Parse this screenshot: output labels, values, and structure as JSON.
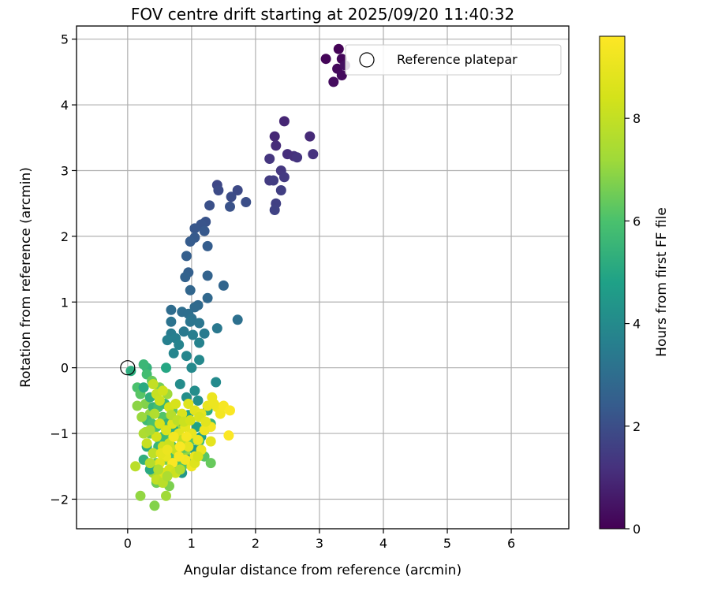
{
  "chart_data": {
    "type": "scatter",
    "title": "FOV centre drift starting at 2025/09/20 11:40:32",
    "xlabel": "Angular distance from reference (arcmin)",
    "ylabel": "Rotation from reference (arcmin)",
    "xlim": [
      -0.8,
      6.9
    ],
    "ylim": [
      -2.45,
      5.2
    ],
    "xticks": [
      0,
      1,
      2,
      3,
      4,
      5,
      6
    ],
    "yticks": [
      -2,
      -1,
      0,
      1,
      2,
      3,
      4,
      5
    ],
    "grid": true,
    "legend": {
      "position": "top-right",
      "entries": [
        "Reference platepar"
      ]
    },
    "reference_point": {
      "x": 0,
      "y": 0
    },
    "colorbar": {
      "label": "Hours from first FF file",
      "min": 0,
      "max": 9.6,
      "ticks": [
        0,
        2,
        4,
        6,
        8
      ],
      "colormap": "viridis"
    },
    "points": [
      [
        3.3,
        4.85,
        0.05
      ],
      [
        3.1,
        4.7,
        0.1
      ],
      [
        3.35,
        4.7,
        0.15
      ],
      [
        3.28,
        4.55,
        0.2
      ],
      [
        3.35,
        4.45,
        0.25
      ],
      [
        3.22,
        4.35,
        0.3
      ],
      [
        3.4,
        4.6,
        0.35
      ],
      [
        2.45,
        3.75,
        0.9
      ],
      [
        2.3,
        3.52,
        0.95
      ],
      [
        2.85,
        3.52,
        1.0
      ],
      [
        2.32,
        3.38,
        1.05
      ],
      [
        2.5,
        3.25,
        1.1
      ],
      [
        2.6,
        3.22,
        1.15
      ],
      [
        2.9,
        3.25,
        1.2
      ],
      [
        2.65,
        3.2,
        1.25
      ],
      [
        2.22,
        3.18,
        1.3
      ],
      [
        2.4,
        3.0,
        1.35
      ],
      [
        2.45,
        2.9,
        1.4
      ],
      [
        2.22,
        2.85,
        1.45
      ],
      [
        2.28,
        2.85,
        1.5
      ],
      [
        2.4,
        2.7,
        1.55
      ],
      [
        2.32,
        2.5,
        1.6
      ],
      [
        2.3,
        2.4,
        1.65
      ],
      [
        1.4,
        2.78,
        1.8
      ],
      [
        1.72,
        2.7,
        1.85
      ],
      [
        1.42,
        2.7,
        1.9
      ],
      [
        1.62,
        2.6,
        1.95
      ],
      [
        1.85,
        2.52,
        2.0
      ],
      [
        1.28,
        2.47,
        2.05
      ],
      [
        1.6,
        2.45,
        2.1
      ],
      [
        1.22,
        2.22,
        2.15
      ],
      [
        1.15,
        2.18,
        2.2
      ],
      [
        1.05,
        2.12,
        2.25
      ],
      [
        1.2,
        2.08,
        2.3
      ],
      [
        1.05,
        1.98,
        2.35
      ],
      [
        0.98,
        1.92,
        2.4
      ],
      [
        1.25,
        1.85,
        2.45
      ],
      [
        0.92,
        1.7,
        2.5
      ],
      [
        0.95,
        1.45,
        2.55
      ],
      [
        0.9,
        1.38,
        2.6
      ],
      [
        1.25,
        1.4,
        2.65
      ],
      [
        1.5,
        1.25,
        2.7
      ],
      [
        0.98,
        1.18,
        2.75
      ],
      [
        1.25,
        1.06,
        2.8
      ],
      [
        1.1,
        0.95,
        2.85
      ],
      [
        1.05,
        0.92,
        2.9
      ],
      [
        0.68,
        0.88,
        2.95
      ],
      [
        0.85,
        0.85,
        3.0
      ],
      [
        0.95,
        0.82,
        3.05
      ],
      [
        1.72,
        0.73,
        3.1
      ],
      [
        1.0,
        0.75,
        3.15
      ],
      [
        0.68,
        0.7,
        3.2
      ],
      [
        0.98,
        0.7,
        3.25
      ],
      [
        1.12,
        0.68,
        3.3
      ],
      [
        1.4,
        0.6,
        3.35
      ],
      [
        0.88,
        0.55,
        3.4
      ],
      [
        1.2,
        0.52,
        3.45
      ],
      [
        0.68,
        0.52,
        3.5
      ],
      [
        1.02,
        0.5,
        3.55
      ],
      [
        0.75,
        0.45,
        3.6
      ],
      [
        0.62,
        0.42,
        3.65
      ],
      [
        1.12,
        0.38,
        3.7
      ],
      [
        0.8,
        0.35,
        3.75
      ],
      [
        0.72,
        0.22,
        3.8
      ],
      [
        0.92,
        0.18,
        3.85
      ],
      [
        1.12,
        0.12,
        3.9
      ],
      [
        1.0,
        0.0,
        3.95
      ],
      [
        1.38,
        -0.22,
        4.0
      ],
      [
        0.82,
        -0.25,
        4.05
      ],
      [
        1.05,
        -0.35,
        4.1
      ],
      [
        0.92,
        -0.45,
        4.15
      ],
      [
        1.1,
        -0.5,
        4.2
      ],
      [
        0.6,
        0.0,
        5.0
      ],
      [
        0.05,
        -0.05,
        5.2
      ],
      [
        0.3,
        0.0,
        5.4
      ],
      [
        0.25,
        0.05,
        5.6
      ],
      [
        0.3,
        -0.1,
        5.8
      ],
      [
        0.15,
        -0.3,
        6.0
      ],
      [
        0.2,
        -0.4,
        6.2
      ],
      [
        0.38,
        -0.2,
        6.4
      ],
      [
        0.5,
        -0.3,
        6.6
      ],
      [
        0.28,
        -0.55,
        6.8
      ],
      [
        0.35,
        -0.7,
        7.0
      ],
      [
        0.62,
        -0.4,
        7.2
      ],
      [
        0.25,
        -0.3,
        5.1
      ],
      [
        0.35,
        -0.45,
        5.3
      ],
      [
        0.4,
        -0.6,
        5.5
      ],
      [
        0.3,
        -0.8,
        5.7
      ],
      [
        0.45,
        -0.9,
        5.9
      ],
      [
        0.55,
        -0.75,
        6.1
      ],
      [
        0.7,
        -0.65,
        6.3
      ],
      [
        0.35,
        -1.0,
        6.5
      ],
      [
        0.5,
        -1.1,
        6.7
      ],
      [
        0.65,
        -1.05,
        6.9
      ],
      [
        0.8,
        -0.95,
        7.1
      ],
      [
        0.3,
        -1.2,
        5.2
      ],
      [
        0.4,
        -1.3,
        5.4
      ],
      [
        0.55,
        -1.25,
        5.6
      ],
      [
        0.7,
        -1.2,
        5.8
      ],
      [
        0.85,
        -1.15,
        6.0
      ],
      [
        1.0,
        -1.1,
        6.2
      ],
      [
        0.45,
        -1.45,
        6.4
      ],
      [
        0.6,
        -1.4,
        6.6
      ],
      [
        0.75,
        -1.35,
        6.8
      ],
      [
        0.9,
        -1.3,
        7.0
      ],
      [
        0.4,
        -1.6,
        7.2
      ],
      [
        0.55,
        -1.65,
        7.4
      ],
      [
        0.7,
        -1.55,
        7.6
      ],
      [
        0.85,
        -1.5,
        6.1
      ],
      [
        1.0,
        -1.45,
        6.3
      ],
      [
        0.45,
        -1.75,
        6.5
      ],
      [
        0.65,
        -1.8,
        6.7
      ],
      [
        0.2,
        -1.95,
        7.0
      ],
      [
        0.6,
        -1.95,
        7.2
      ],
      [
        0.42,
        -2.1,
        6.8
      ],
      [
        0.15,
        -0.58,
        6.9
      ],
      [
        0.22,
        -0.75,
        7.1
      ],
      [
        0.28,
        -0.98,
        7.3
      ],
      [
        0.38,
        -0.85,
        6.0
      ],
      [
        0.48,
        -0.6,
        5.8
      ],
      [
        0.58,
        -0.55,
        5.6
      ],
      [
        0.62,
        -0.85,
        5.4
      ],
      [
        0.72,
        -0.95,
        5.2
      ],
      [
        0.82,
        -0.8,
        5.0
      ],
      [
        0.95,
        -0.72,
        4.9
      ],
      [
        1.08,
        -0.9,
        4.8
      ],
      [
        1.15,
        -1.05,
        4.7
      ],
      [
        1.05,
        -1.25,
        4.6
      ],
      [
        0.95,
        -1.4,
        4.5
      ],
      [
        0.85,
        -1.6,
        4.4
      ],
      [
        0.72,
        -1.5,
        4.3
      ],
      [
        1.2,
        -1.35,
        6.2
      ],
      [
        1.3,
        -1.45,
        6.4
      ],
      [
        1.25,
        -0.65,
        5.3
      ],
      [
        1.3,
        -0.85,
        5.5
      ],
      [
        1.2,
        -0.95,
        5.7
      ],
      [
        1.12,
        -1.12,
        5.9
      ],
      [
        0.35,
        -1.55,
        5.1
      ],
      [
        0.25,
        -1.4,
        5.3
      ],
      [
        0.48,
        -1.2,
        5.5
      ],
      [
        0.55,
        -1.05,
        5.7
      ],
      [
        0.68,
        -1.3,
        5.9
      ],
      [
        0.78,
        -1.42,
        6.1
      ],
      [
        0.88,
        -1.22,
        6.3
      ],
      [
        0.4,
        -0.25,
        8.0
      ],
      [
        0.45,
        -0.4,
        8.1
      ],
      [
        0.5,
        -0.5,
        8.2
      ],
      [
        0.55,
        -0.35,
        8.3
      ],
      [
        0.65,
        -0.6,
        8.4
      ],
      [
        0.75,
        -0.55,
        8.5
      ],
      [
        0.85,
        -0.7,
        8.6
      ],
      [
        0.95,
        -0.55,
        8.7
      ],
      [
        1.05,
        -0.65,
        8.8
      ],
      [
        1.15,
        -0.7,
        8.9
      ],
      [
        1.25,
        -0.58,
        9.0
      ],
      [
        1.32,
        -0.45,
        9.1
      ],
      [
        1.4,
        -0.6,
        9.2
      ],
      [
        1.45,
        -0.7,
        9.3
      ],
      [
        1.5,
        -0.58,
        9.4
      ],
      [
        1.6,
        -0.65,
        9.5
      ],
      [
        1.58,
        -1.03,
        9.55
      ],
      [
        1.3,
        -0.9,
        9.3
      ],
      [
        1.2,
        -0.95,
        9.2
      ],
      [
        1.1,
        -1.1,
        9.1
      ],
      [
        1.0,
        -1.0,
        9.0
      ],
      [
        0.9,
        -0.9,
        8.9
      ],
      [
        0.8,
        -1.0,
        8.8
      ],
      [
        0.7,
        -0.85,
        8.7
      ],
      [
        0.6,
        -0.95,
        8.6
      ],
      [
        0.5,
        -0.85,
        8.5
      ],
      [
        0.45,
        -1.05,
        8.4
      ],
      [
        0.55,
        -1.2,
        8.3
      ],
      [
        0.65,
        -1.15,
        8.2
      ],
      [
        0.75,
        -1.25,
        8.1
      ],
      [
        0.85,
        -1.1,
        8.0
      ],
      [
        0.95,
        -1.2,
        8.9
      ],
      [
        1.05,
        -1.35,
        9.0
      ],
      [
        1.15,
        -1.25,
        9.1
      ],
      [
        1.0,
        -1.5,
        9.2
      ],
      [
        0.9,
        -1.4,
        9.3
      ],
      [
        0.8,
        -1.35,
        9.4
      ],
      [
        0.7,
        -1.45,
        9.5
      ],
      [
        0.6,
        -1.35,
        9.0
      ],
      [
        0.5,
        -1.45,
        8.8
      ],
      [
        0.55,
        -1.6,
        8.6
      ],
      [
        0.65,
        -1.55,
        8.4
      ],
      [
        0.75,
        -1.6,
        8.2
      ],
      [
        0.45,
        -1.7,
        8.0
      ],
      [
        0.55,
        -1.75,
        7.8
      ],
      [
        0.4,
        -1.3,
        7.9
      ],
      [
        0.3,
        -1.15,
        8.1
      ],
      [
        0.35,
        -1.45,
        7.7
      ],
      [
        0.48,
        -1.55,
        7.6
      ],
      [
        0.12,
        -1.5,
        7.8
      ],
      [
        0.25,
        -1.0,
        7.5
      ],
      [
        0.42,
        -0.7,
        7.6
      ],
      [
        0.68,
        -0.72,
        7.7
      ],
      [
        0.78,
        -0.8,
        7.9
      ],
      [
        0.88,
        -0.82,
        8.2
      ],
      [
        0.98,
        -0.8,
        8.4
      ],
      [
        1.12,
        -0.75,
        8.6
      ],
      [
        1.22,
        -0.82,
        8.8
      ],
      [
        1.35,
        -0.55,
        9.1
      ],
      [
        1.05,
        -1.45,
        8.7
      ],
      [
        1.1,
        -1.35,
        8.5
      ],
      [
        1.3,
        -1.12,
        8.9
      ],
      [
        0.52,
        -1.3,
        8.9
      ],
      [
        0.62,
        -1.25,
        9.1
      ],
      [
        0.72,
        -1.05,
        9.3
      ],
      [
        0.82,
        -1.2,
        9.5
      ],
      [
        0.92,
        -1.05,
        9.4
      ],
      [
        0.35,
        -0.95,
        7.4
      ],
      [
        0.62,
        -1.65,
        7.5
      ],
      [
        0.82,
        -1.55,
        7.6
      ]
    ]
  }
}
